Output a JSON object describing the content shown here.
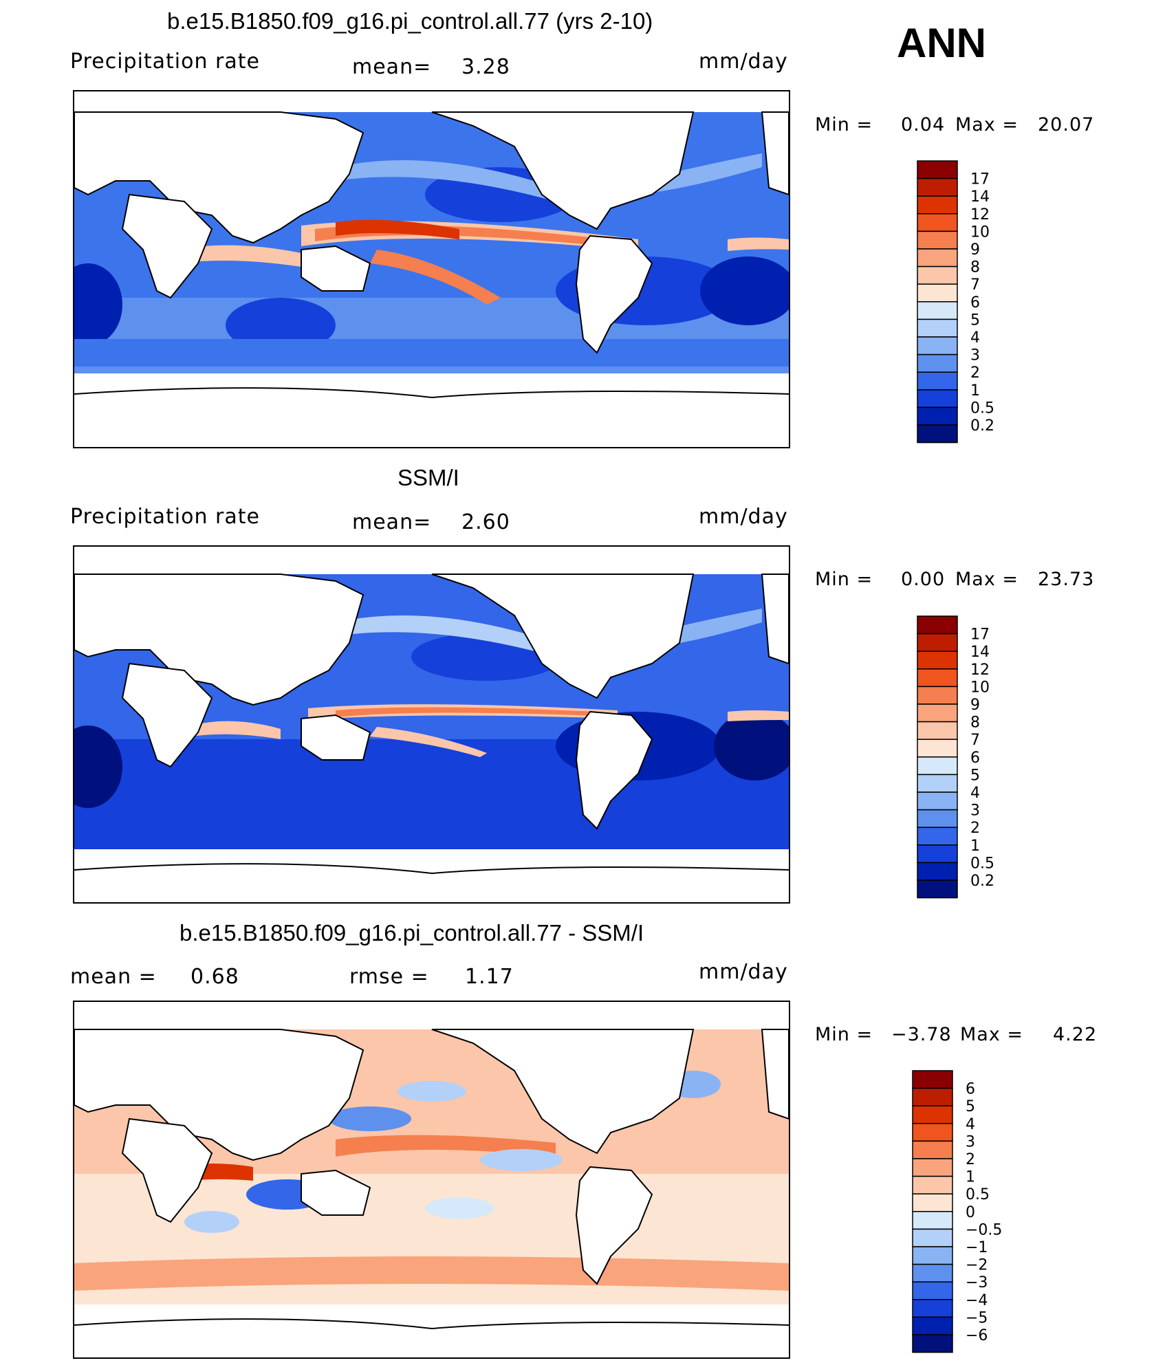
{
  "season_label": "ANN",
  "panels": [
    {
      "id": "model",
      "title": "b.e15.B1850.f09_g16.pi_control.all.77 (yrs 2-10)",
      "variable_label": "Precipitation rate",
      "mean_label": "mean=",
      "mean_value": "3.28",
      "units": "mm/day",
      "min_label": "Min =",
      "min_value": "0.04",
      "max_label": "Max =",
      "max_value": "20.07",
      "colorbar_labels": [
        "17",
        "14",
        "12",
        "10",
        "9",
        "8",
        "7",
        "6",
        "5",
        "4",
        "3",
        "2",
        "1",
        "0.5",
        "0.2"
      ],
      "colorbar_colors": [
        "#8B0000",
        "#BE1E00",
        "#DD3300",
        "#F05520",
        "#F57F4E",
        "#F9A47C",
        "#FBC6AA",
        "#FDE5D3",
        "#D6E9FA",
        "#B3D0F8",
        "#8AB3F4",
        "#5E90EE",
        "#3366E8",
        "#1540DA",
        "#0020B0",
        "#00107C"
      ]
    },
    {
      "id": "obs",
      "title": "SSM/I",
      "variable_label": "Precipitation rate",
      "mean_label": "mean=",
      "mean_value": "2.60",
      "units": "mm/day",
      "min_label": "Min =",
      "min_value": "0.00",
      "max_label": "Max =",
      "max_value": "23.73",
      "colorbar_labels": [
        "17",
        "14",
        "12",
        "10",
        "9",
        "8",
        "7",
        "6",
        "5",
        "4",
        "3",
        "2",
        "1",
        "0.5",
        "0.2"
      ],
      "colorbar_colors": [
        "#8B0000",
        "#BE1E00",
        "#DD3300",
        "#F05520",
        "#F57F4E",
        "#F9A47C",
        "#FBC6AA",
        "#FDE5D3",
        "#D6E9FA",
        "#B3D0F8",
        "#8AB3F4",
        "#5E90EE",
        "#3366E8",
        "#1540DA",
        "#0020B0",
        "#00107C"
      ]
    },
    {
      "id": "diff",
      "title": "b.e15.B1850.f09_g16.pi_control.all.77 - SSM/I",
      "mean_label": "mean =",
      "mean_value": "0.68",
      "rmse_label": "rmse =",
      "rmse_value": "1.17",
      "units": "mm/day",
      "min_label": "Min =",
      "min_value": "−3.78",
      "max_label": "Max =",
      "max_value": "4.22",
      "colorbar_labels": [
        "6",
        "5",
        "4",
        "3",
        "2",
        "1",
        "0.5",
        "0",
        "−0.5",
        "−1",
        "−2",
        "−3",
        "−4",
        "−5",
        "−6"
      ],
      "colorbar_colors": [
        "#8B0000",
        "#BE1E00",
        "#DD3300",
        "#F05520",
        "#F57F4E",
        "#F9A47C",
        "#FBC6AA",
        "#FDE5D3",
        "#D6E9FA",
        "#B3D0F8",
        "#8AB3F4",
        "#5E90EE",
        "#3366E8",
        "#1540DA",
        "#0020B0",
        "#00107C"
      ]
    }
  ],
  "chart_data": [
    {
      "type": "heatmap",
      "title": "b.e15.B1850.f09_g16.pi_control.all.77 (yrs 2-10)",
      "variable": "Precipitation rate",
      "units": "mm/day",
      "mean": 3.28,
      "min": 0.04,
      "max": 20.07,
      "levels": [
        0.2,
        0.5,
        1,
        2,
        3,
        4,
        5,
        6,
        7,
        8,
        9,
        10,
        12,
        14,
        17
      ]
    },
    {
      "type": "heatmap",
      "title": "SSM/I",
      "variable": "Precipitation rate",
      "units": "mm/day",
      "mean": 2.6,
      "min": 0.0,
      "max": 23.73,
      "levels": [
        0.2,
        0.5,
        1,
        2,
        3,
        4,
        5,
        6,
        7,
        8,
        9,
        10,
        12,
        14,
        17
      ]
    },
    {
      "type": "heatmap",
      "title": "b.e15.B1850.f09_g16.pi_control.all.77 - SSM/I",
      "units": "mm/day",
      "mean": 0.68,
      "rmse": 1.17,
      "min": -3.78,
      "max": 4.22,
      "levels": [
        -6,
        -5,
        -4,
        -3,
        -2,
        -1,
        -0.5,
        0,
        0.5,
        1,
        2,
        3,
        4,
        5,
        6
      ]
    }
  ]
}
